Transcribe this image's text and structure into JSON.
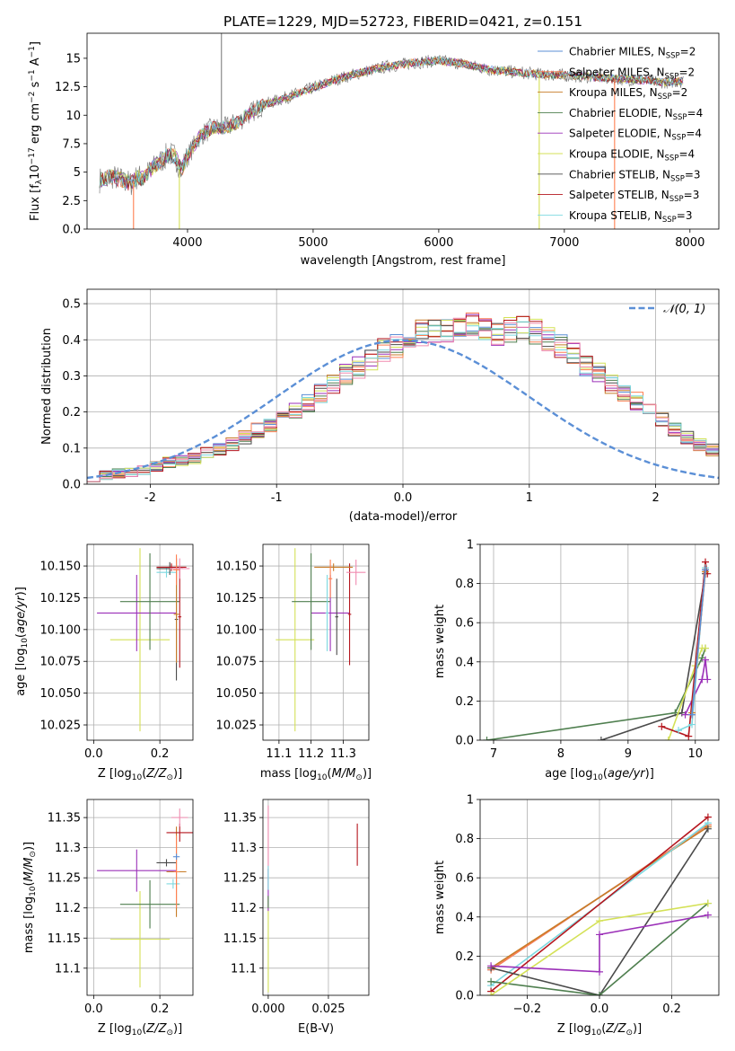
{
  "chart_data": [
    {
      "id": "spectrum",
      "type": "line",
      "title": "PLATE=1229, MJD=52723, FIBERID=0421, z=0.151",
      "xlabel": "wavelength [Angstrom, rest frame]",
      "ylabel": "Flux [f_λ 10^-17 erg cm^-2 s^-1 A^-1]",
      "xlim": [
        3200,
        8230
      ],
      "ylim": [
        0,
        17.2
      ],
      "xticks": [
        4000,
        5000,
        6000,
        7000,
        8000
      ],
      "yticks": [
        0.0,
        2.5,
        5.0,
        7.5,
        10.0,
        12.5,
        15.0
      ],
      "grid": false,
      "legend_position": "right",
      "series": [
        {
          "name": "Chabrier MILES, N_SSP=2",
          "color": "#5b8fd6"
        },
        {
          "name": "Salpeter MILES, N_SSP=2",
          "color": "#ff7f50"
        },
        {
          "name": "Kroupa MILES, N_SSP=2",
          "color": "#c87c28"
        },
        {
          "name": "Chabrier ELODIE, N_SSP=4",
          "color": "#4f7f4f"
        },
        {
          "name": "Salpeter ELODIE, N_SSP=4",
          "color": "#9b30b8"
        },
        {
          "name": "Kroupa ELODIE, N_SSP=4",
          "color": "#d4e157"
        },
        {
          "name": "Chabrier STELIB, N_SSP=3",
          "color": "#4a4a4a"
        },
        {
          "name": "Salpeter STELIB, N_SSP=3",
          "color": "#b5161e"
        },
        {
          "name": "Kroupa STELIB, N_SSP=3",
          "color": "#7ed9e0"
        }
      ],
      "data_series": {
        "name": "",
        "color": "#808080"
      },
      "envelope": {
        "x": [
          3300,
          3400,
          3500,
          3550,
          3600,
          3650,
          3700,
          3750,
          3800,
          3850,
          3900,
          3950,
          4000,
          4100,
          4200,
          4300,
          4400,
          4500,
          4600,
          4800,
          5000,
          5200,
          5400,
          5600,
          5800,
          6000,
          6200,
          6400,
          6600,
          6800,
          7000,
          7200,
          7400,
          7600,
          7800,
          7950
        ],
        "y": [
          4.3,
          4.6,
          4.2,
          4.0,
          4.6,
          4.5,
          5.1,
          5.6,
          6.1,
          6.6,
          6.4,
          5.2,
          6.4,
          8.2,
          8.9,
          8.9,
          9.4,
          10.2,
          10.9,
          11.6,
          12.4,
          13.2,
          13.8,
          14.3,
          14.6,
          14.8,
          14.5,
          14.0,
          13.8,
          13.6,
          13.5,
          13.4,
          13.2,
          13.1,
          12.9,
          13.0
        ]
      },
      "spikes": [
        {
          "x": 4270,
          "y1": 8.8,
          "y2": 18.0,
          "color": "#808080"
        },
        {
          "x": 3570,
          "y1": 0.0,
          "y2": 4.2,
          "color": "#ff7f50"
        },
        {
          "x": 3935,
          "y1": 0.0,
          "y2": 5.2,
          "color": "#d4e157"
        },
        {
          "x": 6800,
          "y1": 0.0,
          "y2": 13.6,
          "color": "#d4e157"
        },
        {
          "x": 7400,
          "y1": 0.0,
          "y2": 13.2,
          "color": "#ff7f50"
        }
      ]
    },
    {
      "id": "residuals",
      "type": "histogram",
      "xlabel": "(data-model)/error",
      "ylabel": "Normed distribution",
      "xlim": [
        -2.5,
        2.5
      ],
      "ylim": [
        0,
        0.54
      ],
      "xticks": [
        -2,
        -1,
        0,
        1,
        2
      ],
      "yticks": [
        0.0,
        0.1,
        0.2,
        0.3,
        0.4,
        0.5
      ],
      "grid": true,
      "legend": "N(0,1)",
      "legend_position": "top-right",
      "gaussian": {
        "mu": 0,
        "sigma": 1,
        "color": "#5b8fd6"
      },
      "bin_width": 0.1,
      "bin_start": -2.5,
      "base_values": [
        0.02,
        0.025,
        0.03,
        0.035,
        0.04,
        0.05,
        0.06,
        0.065,
        0.07,
        0.085,
        0.095,
        0.11,
        0.13,
        0.15,
        0.165,
        0.18,
        0.2,
        0.225,
        0.25,
        0.28,
        0.305,
        0.325,
        0.345,
        0.37,
        0.385,
        0.4,
        0.42,
        0.43,
        0.42,
        0.43,
        0.44,
        0.43,
        0.42,
        0.43,
        0.43,
        0.42,
        0.4,
        0.38,
        0.36,
        0.33,
        0.31,
        0.28,
        0.25,
        0.23,
        0.2,
        0.175,
        0.15,
        0.13,
        0.11,
        0.095,
        0.085,
        0.07,
        0.06,
        0.05,
        0.045,
        0.038,
        0.03,
        0.026,
        0.022,
        0.02
      ],
      "series_colors": [
        "#5b8fd6",
        "#ff7f50",
        "#c87c28",
        "#4f7f4f",
        "#9b30b8",
        "#d4e157",
        "#4a4a4a",
        "#b5161e",
        "#7ed9e0",
        "#f08cb0"
      ]
    },
    {
      "id": "age_vs_Z",
      "type": "errorbar",
      "xlabel": "Z [log10(Z/Z⊙)]",
      "ylabel": "age [log10(age/yr)]",
      "xlim": [
        -0.02,
        0.3
      ],
      "ylim": [
        10.013,
        10.167
      ],
      "xticks": [
        0.0,
        0.2
      ],
      "yticks": [
        10.025,
        10.05,
        10.075,
        10.1,
        10.125,
        10.15
      ],
      "ytick_labels": [
        "10.025",
        "10.050",
        "10.075",
        "10.100",
        "10.125",
        "10.150"
      ],
      "grid": true,
      "points": [
        {
          "x": 0.14,
          "y": 10.092,
          "ex": 0.09,
          "ey": 0.072,
          "color": "#d4e157"
        },
        {
          "x": 0.13,
          "y": 10.113,
          "ex": 0.12,
          "ey": 0.03,
          "color": "#9b30b8"
        },
        {
          "x": 0.17,
          "y": 10.122,
          "ex": 0.09,
          "ey": 0.038,
          "color": "#4f7f4f"
        },
        {
          "x": 0.25,
          "y": 10.108,
          "ex": 0.005,
          "ey": 0.048,
          "color": "#4a4a4a"
        },
        {
          "x": 0.25,
          "y": 10.112,
          "ex": 0.008,
          "ey": 0.038,
          "color": "#c87c28"
        },
        {
          "x": 0.26,
          "y": 10.11,
          "ex": 0.005,
          "ey": 0.04,
          "color": "#b5161e"
        },
        {
          "x": 0.22,
          "y": 10.145,
          "ex": 0.03,
          "ey": 0.004,
          "color": "#7ed9e0"
        },
        {
          "x": 0.23,
          "y": 10.148,
          "ex": 0.04,
          "ey": 0.005,
          "color": "#4a4a4a"
        },
        {
          "x": 0.235,
          "y": 10.149,
          "ex": 0.045,
          "ey": 0.003,
          "color": "#b5161e"
        },
        {
          "x": 0.25,
          "y": 10.147,
          "ex": 0.01,
          "ey": 0.012,
          "color": "#ff7f50"
        },
        {
          "x": 0.26,
          "y": 10.148,
          "ex": 0.03,
          "ey": 0.008,
          "color": "#f08cb0"
        }
      ]
    },
    {
      "id": "age_vs_mass",
      "type": "errorbar",
      "xlabel": "mass [log10(M/M⊙)]",
      "ylabel": "",
      "xlim": [
        11.05,
        11.38
      ],
      "ylim": [
        10.013,
        10.167
      ],
      "xticks": [
        11.1,
        11.2,
        11.3
      ],
      "yticks": [
        10.025,
        10.05,
        10.075,
        10.1,
        10.125,
        10.15
      ],
      "ytick_labels": [
        "10.025",
        "10.050",
        "10.075",
        "10.100",
        "10.125",
        "10.150"
      ],
      "grid": true,
      "points": [
        {
          "x": 11.15,
          "y": 10.092,
          "ex": 0.06,
          "ey": 0.072,
          "color": "#d4e157"
        },
        {
          "x": 11.26,
          "y": 10.113,
          "ex": 0.06,
          "ey": 0.03,
          "color": "#9b30b8"
        },
        {
          "x": 11.2,
          "y": 10.122,
          "ex": 0.06,
          "ey": 0.038,
          "color": "#4f7f4f"
        },
        {
          "x": 11.28,
          "y": 10.11,
          "ex": 0.005,
          "ey": 0.03,
          "color": "#4a4a4a"
        },
        {
          "x": 11.25,
          "y": 10.113,
          "ex": 0.005,
          "ey": 0.03,
          "color": "#7ed9e0"
        },
        {
          "x": 11.32,
          "y": 10.112,
          "ex": 0.005,
          "ey": 0.04,
          "color": "#b5161e"
        },
        {
          "x": 11.34,
          "y": 10.145,
          "ex": 0.03,
          "ey": 0.01,
          "color": "#f08cb0"
        },
        {
          "x": 11.27,
          "y": 10.149,
          "ex": 0.06,
          "ey": 0.003,
          "color": "#c87c28"
        },
        {
          "x": 11.26,
          "y": 10.14,
          "ex": 0.006,
          "ey": 0.015,
          "color": "#ff7f50"
        }
      ]
    },
    {
      "id": "weight_vs_age",
      "type": "line",
      "xlabel": "age [log10(age/yr)]",
      "ylabel": "mass weight",
      "xlim": [
        6.8,
        10.35
      ],
      "ylim": [
        0,
        1.0
      ],
      "xticks": [
        7,
        8,
        9,
        10
      ],
      "yticks": [
        0.0,
        0.2,
        0.4,
        0.6,
        0.8,
        1.0
      ],
      "grid": true,
      "series": [
        {
          "color": "#4f7f4f",
          "x": [
            6.9,
            9.7,
            10.1,
            10.15
          ],
          "y": [
            0.0,
            0.14,
            0.42,
            0.47
          ]
        },
        {
          "color": "#4a4a4a",
          "x": [
            8.6,
            9.8,
            10.15
          ],
          "y": [
            0.0,
            0.14,
            0.85
          ]
        },
        {
          "color": "#d4e157",
          "x": [
            9.6,
            10.0,
            10.1,
            10.15
          ],
          "y": [
            0.0,
            0.38,
            0.47,
            0.47
          ]
        },
        {
          "color": "#9b30b8",
          "x": [
            9.85,
            10.1,
            10.15,
            10.18
          ],
          "y": [
            0.13,
            0.31,
            0.41,
            0.31
          ]
        },
        {
          "color": "#b5161e",
          "x": [
            9.5,
            9.9,
            10.15,
            10.18
          ],
          "y": [
            0.07,
            0.02,
            0.91,
            0.85
          ]
        },
        {
          "color": "#7ed9e0",
          "x": [
            9.75,
            9.95,
            10.15
          ],
          "y": [
            0.05,
            0.08,
            0.88
          ]
        },
        {
          "color": "#c87c28",
          "x": [
            9.95,
            10.15
          ],
          "y": [
            0.14,
            0.86
          ]
        },
        {
          "color": "#ff7f50",
          "x": [
            9.95,
            10.15
          ],
          "y": [
            0.13,
            0.87
          ]
        },
        {
          "color": "#5b8fd6",
          "x": [
            9.95,
            10.15
          ],
          "y": [
            0.13,
            0.87
          ]
        }
      ]
    },
    {
      "id": "mass_vs_Z",
      "type": "errorbar",
      "xlabel": "Z [log10(Z/Z⊙)]",
      "ylabel": "mass [log10(M/M⊙)]",
      "xlim": [
        -0.02,
        0.3
      ],
      "ylim": [
        11.055,
        11.38
      ],
      "xticks": [
        0.0,
        0.2
      ],
      "yticks": [
        11.1,
        11.15,
        11.2,
        11.25,
        11.3,
        11.35
      ],
      "grid": true,
      "points": [
        {
          "x": 0.14,
          "y": 11.148,
          "ex": 0.09,
          "ey": 0.08,
          "color": "#d4e157"
        },
        {
          "x": 0.13,
          "y": 11.262,
          "ex": 0.12,
          "ey": 0.035,
          "color": "#9b30b8"
        },
        {
          "x": 0.17,
          "y": 11.206,
          "ex": 0.09,
          "ey": 0.04,
          "color": "#4f7f4f"
        },
        {
          "x": 0.22,
          "y": 11.275,
          "ex": 0.03,
          "ey": 0.006,
          "color": "#4a4a4a"
        },
        {
          "x": 0.24,
          "y": 11.24,
          "ex": 0.02,
          "ey": 0.008,
          "color": "#7ed9e0"
        },
        {
          "x": 0.25,
          "y": 11.26,
          "ex": 0.03,
          "ey": 0.075,
          "color": "#c87c28"
        },
        {
          "x": 0.25,
          "y": 11.26,
          "ex": 0.008,
          "ey": 0.06,
          "color": "#ff7f50"
        },
        {
          "x": 0.25,
          "y": 11.285,
          "ex": 0.01,
          "ey": 0.005,
          "color": "#5b8fd6"
        },
        {
          "x": 0.26,
          "y": 11.325,
          "ex": 0.04,
          "ey": 0.015,
          "color": "#b5161e"
        },
        {
          "x": 0.26,
          "y": 11.35,
          "ex": 0.025,
          "ey": 0.015,
          "color": "#f08cb0"
        }
      ]
    },
    {
      "id": "mass_vs_ebv",
      "type": "errorbar",
      "xlabel": "E(B-V)",
      "ylabel": "",
      "xlim": [
        -0.0022,
        0.0418
      ],
      "ylim": [
        11.055,
        11.38
      ],
      "xticks": [
        0.0,
        0.025
      ],
      "xtick_labels": [
        "0.000",
        "0.025"
      ],
      "yticks": [
        11.1,
        11.15,
        11.2,
        11.25,
        11.3,
        11.35
      ],
      "grid": true,
      "points": [
        {
          "x": 0.0,
          "y": 11.14,
          "ex": 0,
          "ey": 0.08,
          "color": "#d4e157"
        },
        {
          "x": 0.0,
          "y": 11.3,
          "ex": 0,
          "ey": 0.07,
          "color": "#f08cb0"
        },
        {
          "x": 0.0,
          "y": 11.23,
          "ex": 0,
          "ey": 0.035,
          "color": "#9b30b8"
        },
        {
          "x": 0.0,
          "y": 11.25,
          "ex": 0,
          "ey": 0.02,
          "color": "#7ed9e0"
        },
        {
          "x": 0.0,
          "y": 11.21,
          "ex": 0,
          "ey": 0.01,
          "color": "#4f7f4f"
        },
        {
          "x": 0.037,
          "y": 11.305,
          "ex": 0,
          "ey": 0.035,
          "color": "#b5161e"
        }
      ]
    },
    {
      "id": "weight_vs_Z",
      "type": "line",
      "xlabel": "Z [log10(Z/Z⊙)]",
      "ylabel": "mass weight",
      "xlim": [
        -0.33,
        0.33
      ],
      "ylim": [
        0,
        1.0
      ],
      "xticks": [
        -0.2,
        0.0,
        0.2
      ],
      "xtick_labels": [
        "−0.2",
        "0.0",
        "0.2"
      ],
      "yticks": [
        0.0,
        0.2,
        0.4,
        0.6,
        0.8,
        1.0
      ],
      "grid": true,
      "series": [
        {
          "color": "#5b8fd6",
          "x": [
            -0.3,
            0.3
          ],
          "y": [
            0.13,
            0.87
          ]
        },
        {
          "color": "#ff7f50",
          "x": [
            -0.3,
            0.3
          ],
          "y": [
            0.13,
            0.87
          ]
        },
        {
          "color": "#c87c28",
          "x": [
            -0.3,
            0.3
          ],
          "y": [
            0.14,
            0.86
          ]
        },
        {
          "color": "#7ed9e0",
          "x": [
            -0.3,
            0.3
          ],
          "y": [
            0.05,
            0.88
          ]
        },
        {
          "color": "#b5161e",
          "x": [
            -0.3,
            0.3
          ],
          "y": [
            0.02,
            0.91
          ]
        },
        {
          "color": "#4a4a4a",
          "x": [
            -0.3,
            0.0,
            0.3
          ],
          "y": [
            0.14,
            0.0,
            0.85
          ]
        },
        {
          "color": "#4f7f4f",
          "x": [
            -0.3,
            0.0,
            0.3
          ],
          "y": [
            0.07,
            0.0,
            0.47
          ]
        },
        {
          "color": "#d4e157",
          "x": [
            -0.3,
            0.0,
            0.3
          ],
          "y": [
            0.0,
            0.38,
            0.47
          ]
        },
        {
          "color": "#9b30b8",
          "x": [
            -0.3,
            0.0,
            0.0,
            0.3
          ],
          "y": [
            0.15,
            0.12,
            0.31,
            0.41
          ]
        }
      ]
    }
  ]
}
